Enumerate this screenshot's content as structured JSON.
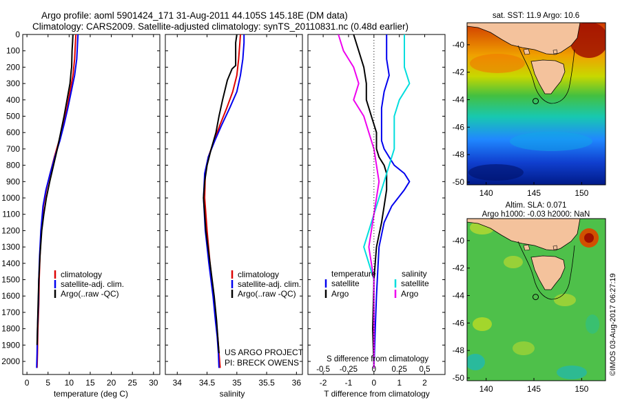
{
  "header": {
    "line1": "Argo profile: aoml 5901424_171 31-Aug-2011 44.105S 145.18E (DM data)",
    "line2": "Climatology: CARS2009. Satellite-adjusted climatology: synTS_20110831.nc (0.48d earlier)"
  },
  "colors": {
    "climatology": "#dd0000",
    "satellite": "#0000ee",
    "argo": "#000000",
    "salinity_diff_satellite": "#00dddd",
    "salinity_diff_argo": "#ee00ee",
    "land": "#f4c29c"
  },
  "credit": {
    "project": "US ARGO PROJECT",
    "pi": "PI: BRECK OWENS",
    "stamp": "©IMOS 03-Aug-2017 06:27:19"
  },
  "legend_profiles": [
    "climatology",
    "satellite-adj. clim.",
    "Argo(..raw -QC)"
  ],
  "legend_diff": {
    "temperature_head": "temperature",
    "salinity_head": "salinity",
    "satellite": "satellite",
    "argo": "Argo"
  },
  "maps": {
    "sst_title": "sat. SST: 11.9 Argo: 10.6",
    "sla_title1": "Altim. SLA: 0.071",
    "sla_title2": "Argo h1000: -0.03 h2000: NaN",
    "lon_ticks": [
      "140",
      "145",
      "150"
    ],
    "lat_ticks": [
      "-40",
      "-42",
      "-44",
      "-46",
      "-48",
      "-50"
    ],
    "lon_range": [
      138,
      152.5
    ],
    "lat_range": [
      -50.2,
      -38.4
    ],
    "float_position": {
      "lon": 145.18,
      "lat": -44.105
    }
  },
  "chart_data": [
    {
      "type": "line",
      "xlabel": "temperature (deg C)",
      "ylabel": "",
      "xlim": [
        -1,
        31.5
      ],
      "ylim": [
        2080,
        0
      ],
      "x_ticks": [
        0,
        5,
        10,
        15,
        20,
        25,
        30
      ],
      "x_tick_labels": [
        "0",
        "5",
        "10",
        "15",
        "20",
        "25",
        "30"
      ],
      "y_ticks": [
        0,
        100,
        200,
        300,
        400,
        500,
        600,
        700,
        800,
        900,
        1000,
        1100,
        1200,
        1300,
        1400,
        1500,
        1600,
        1700,
        1800,
        1900,
        2000
      ],
      "y_tick_labels": [
        "0",
        "100",
        "200",
        "300",
        "400",
        "500",
        "600",
        "700",
        "800",
        "900",
        "1000",
        "1100",
        "1200",
        "1300",
        "1400",
        "1500",
        "1600",
        "1700",
        "1800",
        "1900",
        "2000"
      ],
      "series": [
        {
          "name": "climatology",
          "x": [
            11.6,
            11.5,
            11.3,
            10.9,
            10.2,
            9.5,
            8.6,
            7.6,
            6.5,
            5.5,
            4.6,
            3.9,
            3.4,
            3.1,
            2.9,
            2.8,
            2.6,
            2.5,
            2.4
          ],
          "y": [
            0,
            50,
            150,
            250,
            350,
            450,
            550,
            650,
            750,
            850,
            950,
            1050,
            1200,
            1350,
            1500,
            1650,
            1800,
            1950,
            2040
          ]
        },
        {
          "name": "satellite-adj. clim.",
          "x": [
            12.1,
            12.0,
            11.8,
            11.3,
            10.5,
            9.7,
            8.8,
            7.8,
            6.6,
            5.5,
            4.5,
            3.8,
            3.3,
            3.0,
            2.8,
            2.7,
            2.5,
            2.4,
            2.3
          ],
          "y": [
            0,
            50,
            150,
            250,
            350,
            450,
            550,
            650,
            750,
            850,
            950,
            1050,
            1200,
            1350,
            1500,
            1650,
            1800,
            1950,
            2040
          ]
        },
        {
          "name": "Argo(..raw -QC)",
          "x": [
            10.9,
            10.8,
            10.7,
            10.6,
            10.5,
            10.2,
            9.5,
            8.8,
            8.0,
            7.2,
            6.3,
            5.4,
            4.6,
            4.0,
            3.5,
            3.1,
            2.8,
            2.6,
            2.4
          ],
          "y": [
            0,
            50,
            100,
            200,
            220,
            300,
            400,
            500,
            600,
            700,
            800,
            900,
            1000,
            1100,
            1200,
            1350,
            1500,
            1700,
            1900
          ]
        }
      ]
    },
    {
      "type": "line",
      "xlabel": "salinity",
      "ylabel": "",
      "xlim": [
        33.8,
        36.1
      ],
      "ylim": [
        2080,
        0
      ],
      "x_ticks": [
        34,
        34.5,
        35,
        35.5,
        36
      ],
      "x_tick_labels": [
        "34",
        "34.5",
        "35",
        "35.5",
        "36"
      ],
      "series": [
        {
          "name": "climatology",
          "x": [
            35.06,
            35.05,
            35.03,
            35.0,
            34.93,
            34.83,
            34.72,
            34.62,
            34.52,
            34.47,
            34.46,
            34.5,
            34.55,
            34.61,
            34.65,
            34.68,
            34.7,
            34.72
          ],
          "y": [
            0,
            50,
            150,
            250,
            350,
            450,
            550,
            650,
            750,
            850,
            1000,
            1200,
            1400,
            1600,
            1750,
            1850,
            1950,
            2040
          ]
        },
        {
          "name": "satellite-adj. clim.",
          "x": [
            35.12,
            35.12,
            35.1,
            35.06,
            35.0,
            34.88,
            34.75,
            34.63,
            34.52,
            34.46,
            34.44,
            34.47,
            34.53,
            34.6,
            34.64,
            34.67,
            34.69,
            34.7
          ],
          "y": [
            0,
            50,
            150,
            250,
            350,
            450,
            550,
            650,
            750,
            850,
            1000,
            1200,
            1400,
            1600,
            1750,
            1850,
            1950,
            2040
          ]
        },
        {
          "name": "Argo(..raw -QC)",
          "x": [
            35.0,
            34.98,
            34.98,
            34.92,
            34.84,
            34.76,
            34.7,
            34.65,
            34.57,
            34.5,
            34.46,
            34.44,
            34.48,
            34.55,
            34.62,
            34.66,
            34.68,
            34.7
          ],
          "y": [
            0,
            50,
            190,
            210,
            280,
            400,
            500,
            600,
            700,
            800,
            900,
            1000,
            1200,
            1400,
            1600,
            1750,
            1850,
            1950
          ]
        }
      ]
    },
    {
      "type": "line",
      "xlabel": "T difference from climatology",
      "ylabel": "",
      "xlim": [
        -2.6,
        2.8
      ],
      "ylim": [
        2080,
        0
      ],
      "x_ticks": [
        -2,
        -1,
        0,
        1,
        2
      ],
      "x_tick_labels": [
        "-2",
        "-1",
        "0",
        "1",
        "2"
      ],
      "secondary_xlabel": "S difference from climatology",
      "secondary_x_ticks": [
        -0.5,
        -0.25,
        0,
        0.25,
        0.5
      ],
      "secondary_x_tick_labels": [
        "-0.5",
        "-0.25",
        "0",
        "0.25",
        "0.5"
      ],
      "series": [
        {
          "name": "temperature satellite",
          "x": [
            0.5,
            0.5,
            0.5,
            0.6,
            0.4,
            0.3,
            0.3,
            0.3,
            0.3,
            0.4,
            0.6,
            0.8,
            1.2,
            1.4,
            1.2,
            0.7,
            0.4,
            0.2,
            0.15,
            0.1,
            0.05,
            0.0
          ],
          "y": [
            0,
            50,
            150,
            250,
            350,
            450,
            550,
            600,
            650,
            700,
            750,
            800,
            850,
            900,
            950,
            1050,
            1150,
            1300,
            1450,
            1600,
            1800,
            2040
          ]
        },
        {
          "name": "temperature Argo",
          "x": [
            -0.8,
            -0.6,
            -0.4,
            -0.3,
            -0.3,
            -0.1,
            0.1,
            0.1,
            0.2,
            0.4,
            0.5,
            0.5,
            0.4,
            0.3,
            0.1,
            0.0,
            -0.05,
            0.0
          ],
          "y": [
            0,
            100,
            200,
            300,
            400,
            500,
            600,
            700,
            750,
            800,
            850,
            950,
            1050,
            1150,
            1300,
            1500,
            1800,
            2040
          ]
        },
        {
          "name": "salinity satellite",
          "x": [
            0.3,
            0.3,
            0.3,
            0.35,
            0.25,
            0.2,
            0.2,
            0.2,
            0.1,
            0.0,
            -0.1,
            0.0,
            0.0,
            0.0
          ],
          "y": [
            0,
            100,
            200,
            300,
            400,
            500,
            600,
            700,
            900,
            1100,
            1300,
            1500,
            1800,
            2040
          ]
        },
        {
          "name": "salinity Argo",
          "x": [
            -0.35,
            -0.3,
            -0.2,
            -0.15,
            -0.2,
            -0.1,
            -0.05,
            0.0,
            0.05,
            0.0,
            -0.05,
            0.0,
            0.0
          ],
          "y": [
            0,
            100,
            200,
            300,
            400,
            500,
            600,
            700,
            900,
            1100,
            1300,
            1500,
            2040
          ]
        }
      ]
    }
  ]
}
